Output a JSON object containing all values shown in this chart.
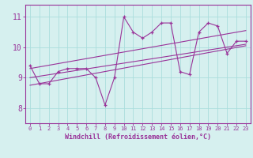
{
  "xlabel": "Windchill (Refroidissement éolien,°C)",
  "ylabel": "",
  "bg_color": "#d6f0ef",
  "line_color": "#993399",
  "grid_color": "#aadddd",
  "xticks": [
    0,
    1,
    2,
    3,
    4,
    5,
    6,
    7,
    8,
    9,
    10,
    11,
    12,
    13,
    14,
    15,
    16,
    17,
    18,
    19,
    20,
    21,
    22,
    23
  ],
  "yticks": [
    8,
    9,
    10,
    11
  ],
  "ylim": [
    7.5,
    11.4
  ],
  "xlim": [
    -0.5,
    23.5
  ],
  "series1_x": [
    0,
    1,
    2,
    3,
    4,
    5,
    6,
    7,
    8,
    9,
    10,
    11,
    12,
    13,
    14,
    15,
    16,
    17,
    18,
    19,
    20,
    21,
    22,
    23
  ],
  "series1_y": [
    9.4,
    8.8,
    8.8,
    9.2,
    9.3,
    9.3,
    9.3,
    9.0,
    8.1,
    9.0,
    11.0,
    10.5,
    10.3,
    10.5,
    10.8,
    10.8,
    9.2,
    9.1,
    10.5,
    10.8,
    10.7,
    9.8,
    10.2,
    10.2
  ],
  "series2_x": [
    0,
    23
  ],
  "series2_y": [
    9.0,
    10.1
  ],
  "series3_x": [
    0,
    23
  ],
  "series3_y": [
    9.3,
    10.55
  ],
  "series4_x": [
    0,
    23
  ],
  "series4_y": [
    8.75,
    10.05
  ],
  "fontsize_xlabel": 6,
  "fontsize_yticks": 7,
  "fontsize_xticks": 5
}
